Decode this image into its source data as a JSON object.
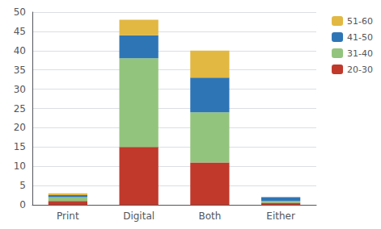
{
  "chart_data": {
    "type": "bar",
    "stacked": true,
    "categories": [
      "Print",
      "Digital",
      "Both",
      "Either"
    ],
    "series": [
      {
        "name": "20-30",
        "color": "#C0392B",
        "values": [
          1,
          15,
          11,
          0.5
        ]
      },
      {
        "name": "31-40",
        "color": "#93C47D",
        "values": [
          1,
          23,
          13,
          0.5
        ]
      },
      {
        "name": "41-50",
        "color": "#2E75B6",
        "values": [
          0.5,
          6,
          9,
          1
        ]
      },
      {
        "name": "51-60",
        "color": "#E2B842",
        "values": [
          0.5,
          4,
          7,
          0
        ]
      }
    ],
    "ylim": [
      0,
      50
    ],
    "yticks": [
      0,
      5,
      10,
      15,
      20,
      25,
      30,
      35,
      40,
      45,
      50
    ],
    "grid": true,
    "legend": "upper right"
  }
}
